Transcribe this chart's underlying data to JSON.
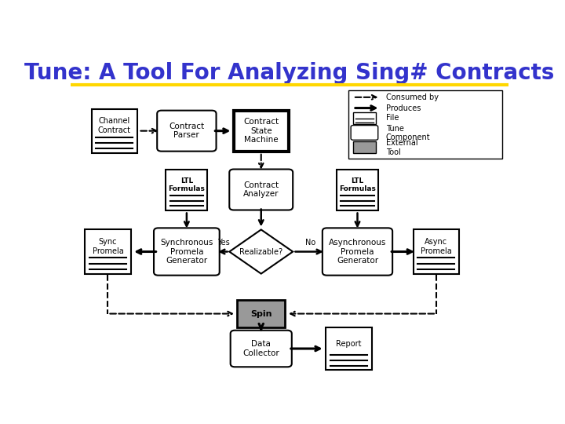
{
  "title": "Tune: A Tool For Analyzing Sing# Contracts",
  "title_color": "#3333cc",
  "title_fontsize": 20,
  "bg_color": "#ffffff",
  "gold_line_color": "#FFD700",
  "legend": {
    "consumed_by": "Consumed by",
    "produces": "Produces",
    "file": "File",
    "tune_component": "Tune\nComponent",
    "external_tool": "External\nTool"
  }
}
